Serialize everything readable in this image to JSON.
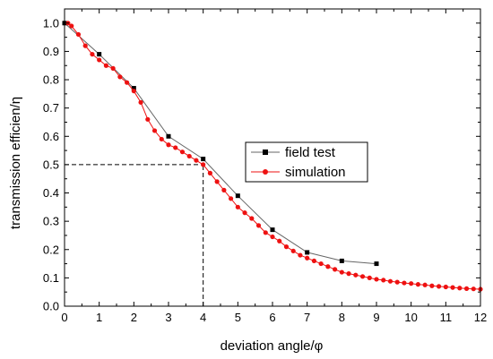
{
  "chart_data": {
    "type": "line",
    "xlabel": "deviation angle/φ",
    "ylabel": "transmission efficien/η",
    "xlim": [
      0,
      12
    ],
    "ylim": [
      0,
      1.05
    ],
    "xticks": [
      0,
      1,
      2,
      3,
      4,
      5,
      6,
      7,
      8,
      9,
      10,
      11,
      12
    ],
    "yticks": [
      0.0,
      0.1,
      0.2,
      0.3,
      0.4,
      0.5,
      0.6,
      0.7,
      0.8,
      0.9,
      1.0
    ],
    "xtick_labels": [
      "0",
      "1",
      "2",
      "3",
      "4",
      "5",
      "6",
      "7",
      "8",
      "9",
      "10",
      "11",
      "12"
    ],
    "ytick_labels": [
      "0.0",
      "0.1",
      "0.2",
      "0.3",
      "0.4",
      "0.5",
      "0.6",
      "0.7",
      "0.8",
      "0.9",
      "1.0"
    ],
    "grid": false,
    "legend_position": "center-right",
    "reference_lines": [
      {
        "type": "horizontal",
        "y": 0.5,
        "x_from": 0,
        "x_to": 4,
        "style": "dashed"
      },
      {
        "type": "vertical",
        "x": 4,
        "y_from": 0,
        "y_to": 0.5,
        "style": "dashed"
      }
    ],
    "series": [
      {
        "name": "field test",
        "color": "#000000",
        "line_color": "#666666",
        "marker": "square",
        "x": [
          0,
          1,
          2,
          3,
          4,
          5,
          6,
          7,
          8,
          9
        ],
        "y": [
          1.0,
          0.89,
          0.77,
          0.6,
          0.52,
          0.39,
          0.27,
          0.19,
          0.16,
          0.15
        ]
      },
      {
        "name": "simulation",
        "color": "#ee1111",
        "line_color": "#ee1111",
        "marker": "circle",
        "x": [
          0.1,
          0.2,
          0.4,
          0.6,
          0.8,
          1.0,
          1.2,
          1.4,
          1.6,
          1.8,
          2.0,
          2.2,
          2.4,
          2.6,
          2.8,
          3.0,
          3.2,
          3.4,
          3.6,
          3.8,
          4.0,
          4.2,
          4.4,
          4.6,
          4.8,
          5.0,
          5.2,
          5.4,
          5.6,
          5.8,
          6.0,
          6.2,
          6.4,
          6.6,
          6.8,
          7.0,
          7.2,
          7.4,
          7.6,
          7.8,
          8.0,
          8.2,
          8.4,
          8.6,
          8.8,
          9.0,
          9.2,
          9.4,
          9.6,
          9.8,
          10.0,
          10.2,
          10.4,
          10.6,
          10.8,
          11.0,
          11.2,
          11.4,
          11.6,
          11.8,
          12.0
        ],
        "y": [
          1.0,
          0.99,
          0.96,
          0.92,
          0.89,
          0.87,
          0.85,
          0.84,
          0.81,
          0.79,
          0.76,
          0.72,
          0.66,
          0.62,
          0.59,
          0.57,
          0.56,
          0.545,
          0.53,
          0.515,
          0.5,
          0.47,
          0.44,
          0.41,
          0.38,
          0.35,
          0.33,
          0.31,
          0.285,
          0.26,
          0.245,
          0.23,
          0.21,
          0.195,
          0.18,
          0.17,
          0.16,
          0.15,
          0.14,
          0.13,
          0.12,
          0.115,
          0.11,
          0.105,
          0.1,
          0.095,
          0.092,
          0.088,
          0.085,
          0.082,
          0.08,
          0.077,
          0.075,
          0.072,
          0.07,
          0.068,
          0.066,
          0.064,
          0.062,
          0.061,
          0.06
        ]
      }
    ]
  }
}
